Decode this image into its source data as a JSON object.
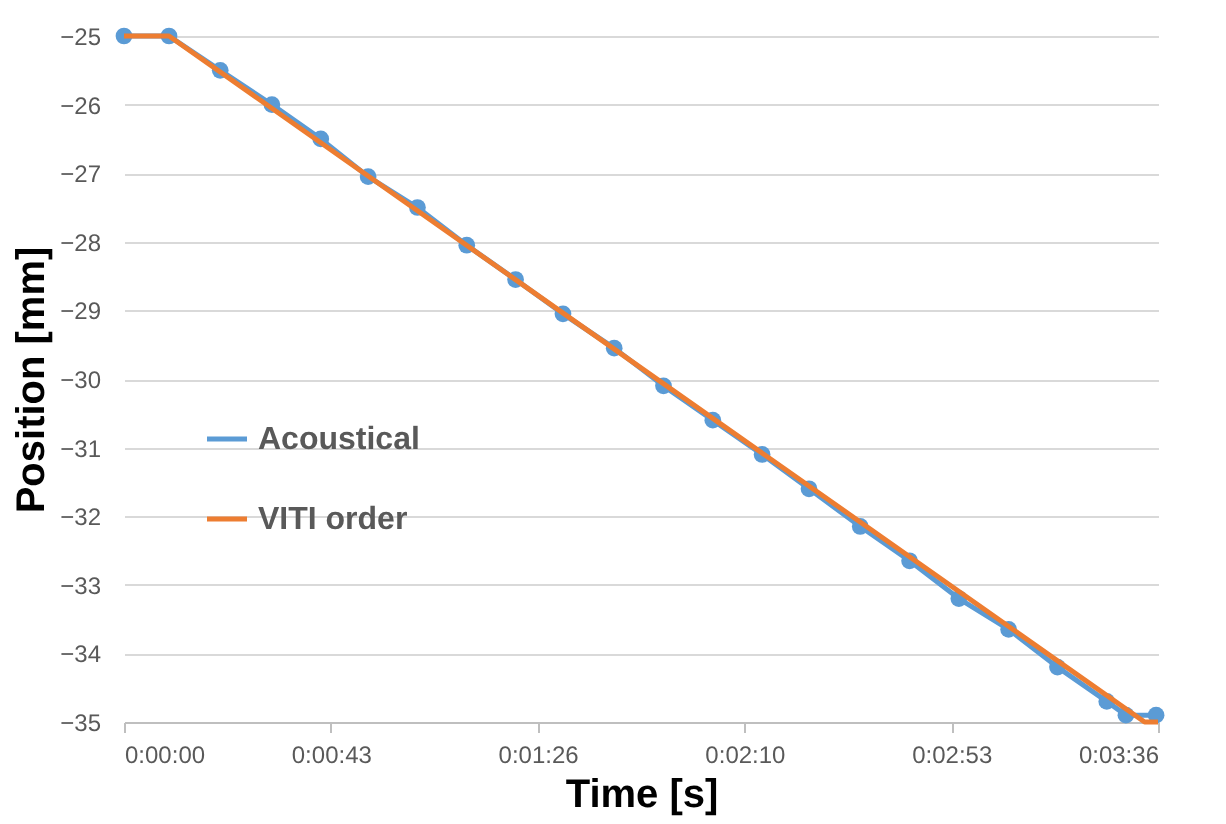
{
  "chart_data": {
    "type": "line",
    "xlabel": "Time [s]",
    "ylabel": "Position [mm]",
    "xlim": [
      0,
      216
    ],
    "xticks": [
      {
        "value": 0,
        "label": "0:00:00"
      },
      {
        "value": 43.2,
        "label": "0:00:43"
      },
      {
        "value": 86.4,
        "label": "0:01:26"
      },
      {
        "value": 129.6,
        "label": "0:02:10"
      },
      {
        "value": 172.8,
        "label": "0:02:53"
      },
      {
        "value": 216,
        "label": "0:03:36"
      }
    ],
    "ylim": [
      -35,
      -25
    ],
    "yticks": [
      -35,
      -34,
      -33,
      -32,
      -31,
      -30,
      -29,
      -28,
      -27,
      -26,
      -25
    ],
    "grid": "y",
    "legend": "left",
    "line_style": "solid",
    "series": [
      {
        "name": "Acoustical",
        "color": "#5b9bd5",
        "marker": "circle",
        "x": [
          0,
          9.4,
          20.1,
          30.9,
          41.1,
          51,
          61.3,
          71.6,
          81.8,
          91.7,
          102.4,
          112.7,
          123,
          133.3,
          143.1,
          153.8,
          164.1,
          174.4,
          184.8,
          195,
          205.3,
          209.3,
          215.6
        ],
        "values": [
          -25,
          -25,
          -25.5,
          -26,
          -26.5,
          -27.05,
          -27.5,
          -28.05,
          -28.55,
          -29.05,
          -29.55,
          -30.1,
          -30.6,
          -31.1,
          -31.6,
          -32.15,
          -32.65,
          -33.2,
          -33.65,
          -34.2,
          -34.7,
          -34.9,
          -34.9
        ]
      },
      {
        "name": "VITI order",
        "color": "#ed7d31",
        "marker": "none",
        "x": [
          0,
          9.4,
          213.2,
          216
        ],
        "values": [
          -25,
          -25,
          -35,
          -35
        ]
      }
    ]
  }
}
